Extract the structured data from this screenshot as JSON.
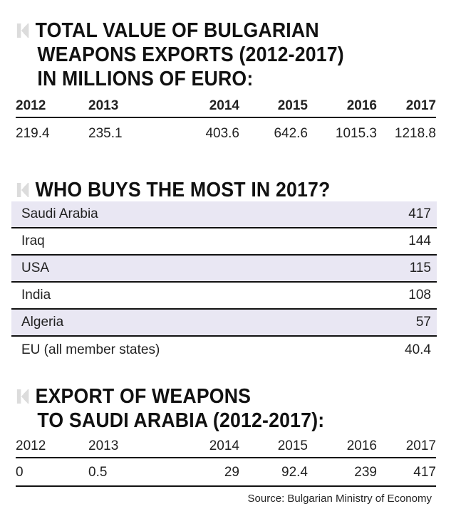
{
  "section1": {
    "title_lines": [
      "TOTAL VALUE OF BULGARIAN",
      "WEAPONS EXPORTS (2012-2017)",
      "IN MILLIONS OF EURO:"
    ],
    "years": [
      "2012",
      "2013",
      "2014",
      "2015",
      "2016",
      "2017"
    ],
    "values": [
      "219.4",
      "235.1",
      "403.6",
      "642.6",
      "1015.3",
      "1218.8"
    ]
  },
  "section2": {
    "title": "WHO BUYS THE MOST IN 2017?",
    "buyers": [
      {
        "country": "Saudi Arabia",
        "value": "417"
      },
      {
        "country": "Iraq",
        "value": "144"
      },
      {
        "country": "USA",
        "value": "115"
      },
      {
        "country": "India",
        "value": "108"
      },
      {
        "country": "Algeria",
        "value": "57"
      },
      {
        "country": "EU (all member states)",
        "value": "40.4"
      }
    ]
  },
  "section3": {
    "title_lines": [
      "EXPORT OF WEAPONS",
      "TO SAUDI ARABIA (2012-2017):"
    ],
    "years": [
      "2012",
      "2013",
      "2014",
      "2015",
      "2016",
      "2017"
    ],
    "values": [
      "0",
      "0.5",
      "29",
      "92.4",
      "239",
      "417"
    ]
  },
  "source": "Source: Bulgarian Ministry of Economy",
  "colors": {
    "row_shade": "#e9e7f3",
    "logo": "#dcdcdc",
    "text": "#1a1a1a"
  },
  "icons": {
    "brand": "k-logo-icon"
  }
}
